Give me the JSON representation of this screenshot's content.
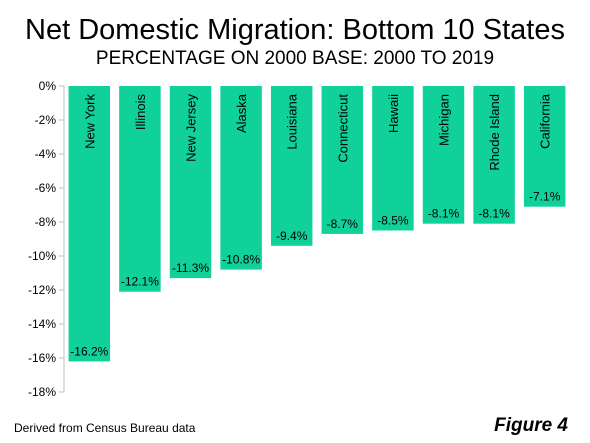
{
  "chart_data": {
    "type": "bar",
    "title": "Net Domestic Migration: Bottom 10 States",
    "subtitle": "PERCENTAGE ON 2000 BASE: 2000 TO 2019",
    "categories": [
      "New York",
      "Illinois",
      "New Jersey",
      "Alaska",
      "Louisiana",
      "Connecticut",
      "Hawaii",
      "Michigan",
      "Rhode Island",
      "California"
    ],
    "values": [
      -16.2,
      -12.1,
      -11.3,
      -10.8,
      -9.4,
      -8.7,
      -8.5,
      -8.1,
      -8.1,
      -7.1
    ],
    "data_labels": [
      "-16.2%",
      "-12.1%",
      "-11.3%",
      "-10.8%",
      "-9.4%",
      "-8.7%",
      "-8.5%",
      "-8.1%",
      "-8.1%",
      "-7.1%"
    ],
    "ylim": [
      -18,
      0
    ],
    "yticks": [
      0,
      -2,
      -4,
      -6,
      -8,
      -10,
      -12,
      -14,
      -16,
      -18
    ],
    "ytick_labels": [
      "0%",
      "-2%",
      "-4%",
      "-6%",
      "-8%",
      "-10%",
      "-12%",
      "-14%",
      "-16%",
      "-18%"
    ],
    "xlabel": "",
    "ylabel": "",
    "bar_color": "#10D19A",
    "grid": false,
    "legend": "none"
  },
  "footer": {
    "source": "Derived from Census Bureau data",
    "figure_label": "Figure 4"
  }
}
